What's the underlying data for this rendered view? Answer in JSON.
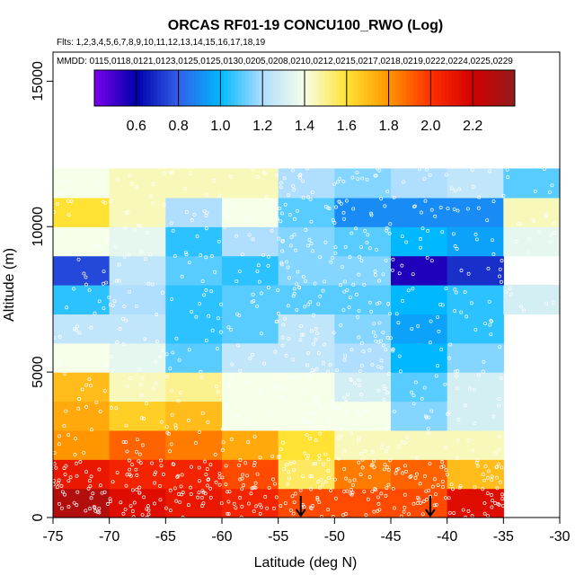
{
  "chart_data": {
    "type": "heatmap",
    "title": "ORCAS RF01-19 CONCU100_RWO (Log)",
    "subtitle_flights": "Flts: 1,2,3,4,5,6,7,8,9,10,11,12,13,14,15,16,17,18,19",
    "subtitle_dates": "MMDD: 0115,0118,0121,0123,0125,0125,0130,0205,0208,0210,0212,0215,0217,0218,0219,0222,0224,0225,0229",
    "xlabel": "Latitude (deg N)",
    "ylabel": "Altitude (m)",
    "xlim": [
      -75,
      -30
    ],
    "ylim": [
      0,
      16000
    ],
    "x_ticks": [
      -75,
      -70,
      -65,
      -60,
      -55,
      -50,
      -45,
      -40,
      -35,
      -30
    ],
    "y_ticks": [
      0,
      5000,
      10000,
      15000
    ],
    "colorbar": {
      "range": [
        0.4,
        2.4
      ],
      "ticks": [
        0.6,
        0.8,
        1.0,
        1.2,
        1.4,
        1.6,
        1.8,
        2.0,
        2.2
      ],
      "tick_labels": [
        "0.6",
        "0.8",
        "1.0",
        "1.2",
        "1.4",
        "1.6",
        "1.8",
        "2.0",
        "2.2"
      ]
    },
    "lat_bins": [
      -75,
      -70,
      -65,
      -60,
      -55,
      -50,
      -45,
      -40,
      -35,
      -30
    ],
    "alt_bin_size": 1000,
    "cells": [
      {
        "alt": 0,
        "values": [
          2.3,
          2.15,
          2.1,
          2.05,
          1.95,
          1.95,
          1.95,
          2.15,
          null
        ]
      },
      {
        "alt": 1000,
        "values": [
          2.1,
          2.05,
          2.05,
          1.95,
          1.55,
          1.85,
          1.9,
          1.7,
          null
        ]
      },
      {
        "alt": 2000,
        "values": [
          1.8,
          1.9,
          1.85,
          1.75,
          1.6,
          1.45,
          1.45,
          1.45,
          null
        ]
      },
      {
        "alt": 3000,
        "values": [
          1.75,
          1.65,
          1.7,
          1.4,
          1.4,
          1.4,
          1.15,
          1.3,
          null
        ]
      },
      {
        "alt": 4000,
        "values": [
          1.7,
          1.45,
          1.5,
          1.4,
          1.4,
          1.3,
          1.1,
          1.3,
          null
        ]
      },
      {
        "alt": 5000,
        "values": [
          1.4,
          1.35,
          1.1,
          1.25,
          1.25,
          1.2,
          1.0,
          1.15,
          null
        ]
      },
      {
        "alt": 6000,
        "values": [
          1.25,
          1.25,
          1.05,
          1.1,
          1.25,
          1.15,
          0.95,
          1.05,
          null
        ]
      },
      {
        "alt": 7000,
        "values": [
          1.05,
          1.2,
          1.05,
          1.1,
          1.1,
          1.1,
          1.0,
          1.05,
          1.3
        ]
      },
      {
        "alt": 8000,
        "values": [
          0.75,
          1.25,
          1.1,
          1.05,
          1.15,
          1.15,
          0.55,
          0.7,
          null
        ]
      },
      {
        "alt": 9000,
        "values": [
          1.4,
          1.35,
          1.05,
          1.2,
          1.15,
          1.1,
          1.0,
          0.95,
          1.35
        ]
      },
      {
        "alt": 10000,
        "values": [
          1.6,
          1.45,
          1.2,
          1.4,
          1.1,
          0.9,
          0.9,
          0.9,
          1.45
        ]
      },
      {
        "alt": 11000,
        "values": [
          1.4,
          1.45,
          1.45,
          1.45,
          1.2,
          1.15,
          1.2,
          1.25,
          1.1
        ]
      }
    ],
    "arrow_markers_lat": [
      -53,
      -41.5
    ],
    "arrow_marker_alt": 0
  }
}
